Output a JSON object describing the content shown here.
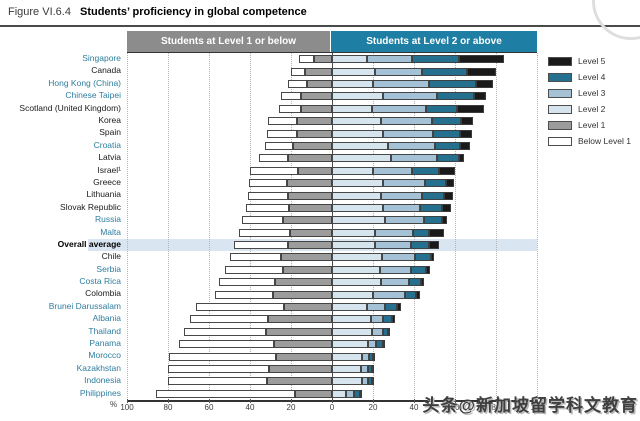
{
  "title": {
    "prefix": "Figure VI.6.4",
    "text": "Students’ proficiency in global competence"
  },
  "headers": {
    "left": "Students at Level 1 or below",
    "right": "Students at Level 2 or above"
  },
  "legend": [
    {
      "label": "Level 5",
      "color": "#1a1a1a"
    },
    {
      "label": "Level 4",
      "color": "#26708f"
    },
    {
      "label": "Level 3",
      "color": "#a5c1d6"
    },
    {
      "label": "Level 2",
      "color": "#d6e4ee"
    },
    {
      "label": "Level 1",
      "color": "#9c9c9c"
    },
    {
      "label": "Below Level 1",
      "color": "#ffffff"
    }
  ],
  "axis": {
    "unit": "%",
    "ticks": [
      "100",
      "80",
      "60",
      "40",
      "20",
      "0",
      "20",
      "40",
      "60",
      "80",
      "100"
    ]
  },
  "watermark": "头条@新加坡留学科文教育",
  "colors": {
    "header_gray": "#8c8c8c",
    "header_teal": "#1e7ea4",
    "partner_label_teal": "#2e7d9e",
    "highlight_band": "#d9e6f1"
  },
  "chart_data": {
    "type": "bar",
    "orientation": "horizontal-diverging-stacked",
    "xlim": [
      -100,
      100
    ],
    "grid": "dotted-vertical-every-20",
    "legend_position": "right",
    "highlight_row": "Overall average",
    "categories": [
      {
        "label": "Singapore",
        "style": "partner"
      },
      {
        "label": "Canada",
        "style": "plain"
      },
      {
        "label": "Hong Kong (China)",
        "style": "partner"
      },
      {
        "label": "Chinese Taipei",
        "style": "partner"
      },
      {
        "label": "Scotland (United Kingdom)",
        "style": "plain"
      },
      {
        "label": "Korea",
        "style": "plain"
      },
      {
        "label": "Spain",
        "style": "plain"
      },
      {
        "label": "Croatia",
        "style": "partner"
      },
      {
        "label": "Latvia",
        "style": "plain"
      },
      {
        "label": "Israel¹",
        "style": "plain"
      },
      {
        "label": "Greece",
        "style": "plain"
      },
      {
        "label": "Lithuania",
        "style": "plain"
      },
      {
        "label": "Slovak Republic",
        "style": "plain"
      },
      {
        "label": "Russia",
        "style": "partner"
      },
      {
        "label": "Malta",
        "style": "partner"
      },
      {
        "label": "Overall average",
        "style": "average"
      },
      {
        "label": "Chile",
        "style": "plain"
      },
      {
        "label": "Serbia",
        "style": "partner"
      },
      {
        "label": "Costa Rica",
        "style": "partner"
      },
      {
        "label": "Colombia",
        "style": "plain"
      },
      {
        "label": "Brunei Darussalam",
        "style": "partner"
      },
      {
        "label": "Albania",
        "style": "partner"
      },
      {
        "label": "Thailand",
        "style": "partner"
      },
      {
        "label": "Panama",
        "style": "partner"
      },
      {
        "label": "Morocco",
        "style": "partner"
      },
      {
        "label": "Kazakhstan",
        "style": "partner"
      },
      {
        "label": "Indonesia",
        "style": "partner"
      },
      {
        "label": "Philippines",
        "style": "partner"
      }
    ],
    "series": [
      {
        "name": "Below Level 1",
        "side": "left",
        "color": "#ffffff",
        "values": [
          7,
          7,
          9.5,
          10,
          11,
          14,
          14.5,
          13.5,
          14,
          23.5,
          18.5,
          19.5,
          21,
          20,
          25,
          26.5,
          25,
          28,
          27,
          28,
          43,
          38.5,
          40,
          46,
          52,
          49.5,
          48.5,
          68
        ]
      },
      {
        "name": "Level 1",
        "side": "left",
        "color": "#9c9c9c",
        "values": [
          9,
          13,
          12,
          15,
          15,
          17,
          17,
          19,
          21.5,
          16.5,
          22,
          21.5,
          21,
          24,
          20.5,
          21.5,
          25,
          24,
          28,
          29,
          23.5,
          31,
          32,
          28.5,
          27.5,
          30.5,
          31.5,
          18
        ]
      },
      {
        "name": "Level 2",
        "side": "right",
        "color": "#d6e4ee",
        "values": [
          17,
          21,
          20,
          25,
          19.5,
          24,
          25,
          27.5,
          29,
          20,
          25,
          24,
          25,
          26,
          21,
          21,
          24.5,
          23.5,
          24,
          20,
          17,
          19,
          19.5,
          17.5,
          14.5,
          14,
          14.5,
          7
        ]
      },
      {
        "name": "Level 3",
        "side": "right",
        "color": "#a5c1d6",
        "values": [
          22,
          23,
          27.5,
          26,
          26.5,
          25,
          24.5,
          22.5,
          22,
          19,
          20.5,
          20,
          18,
          19,
          18.5,
          17.5,
          16,
          15,
          13.5,
          15.5,
          9,
          6,
          5.5,
          4,
          3.5,
          3.5,
          3,
          3.5
        ]
      },
      {
        "name": "Level 4",
        "side": "right",
        "color": "#26708f",
        "values": [
          23,
          22,
          22.5,
          18.5,
          15,
          14,
          13,
          12.5,
          11,
          13,
          10,
          10.5,
          10.5,
          8.5,
          8,
          9,
          8,
          7.5,
          6,
          5.5,
          5.5,
          4.5,
          2.5,
          3.5,
          2,
          2,
          2,
          3
        ]
      },
      {
        "name": "Level 5",
        "side": "right",
        "color": "#1a1a1a",
        "values": [
          22,
          14,
          8.5,
          5.5,
          13,
          6,
          6,
          5,
          2.5,
          8,
          4,
          4.5,
          4.5,
          2.5,
          7,
          4.5,
          1.5,
          2,
          1.5,
          2,
          2,
          1,
          0.5,
          0.5,
          0.5,
          0.5,
          0.5,
          0.5
        ]
      }
    ]
  }
}
